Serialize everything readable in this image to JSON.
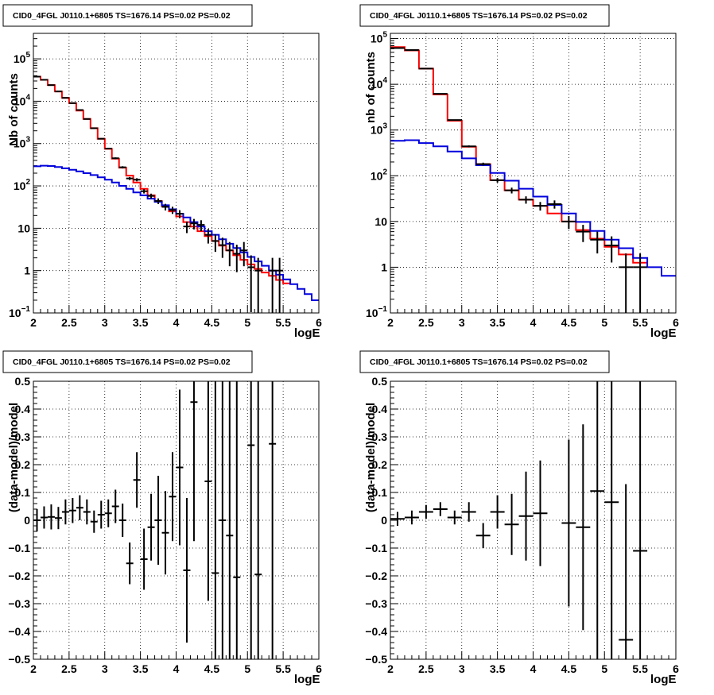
{
  "chart_data": [
    {
      "id": "counts-left",
      "type": "line",
      "title": "CID0_4FGL J0110.1+6805 TS=1676.14 PS=0.02 PS=0.02",
      "xlabel": "logE",
      "ylabel": "Nb of counts",
      "xlim": [
        2,
        6
      ],
      "ylim": [
        0.1,
        400000
      ],
      "yscale": "log",
      "grid": true,
      "x_ticks": [
        "2",
        "2.5",
        "3",
        "3.5",
        "4",
        "4.5",
        "5",
        "5.5",
        "6"
      ],
      "y_ticks": [
        {
          "v": 0.1,
          "base": "10",
          "exp": "−1"
        },
        {
          "v": 1,
          "label": "1"
        },
        {
          "v": 10,
          "label": "10"
        },
        {
          "v": 100,
          "base": "10",
          "exp": "2"
        },
        {
          "v": 1000,
          "base": "10",
          "exp": "3"
        },
        {
          "v": 10000,
          "base": "10",
          "exp": "4"
        },
        {
          "v": 100000,
          "base": "10",
          "exp": "5"
        }
      ],
      "bin_width": 0.1,
      "series": [
        {
          "color": "#ff0000",
          "x": [
            2.0,
            2.1,
            2.2,
            2.3,
            2.4,
            2.5,
            2.6,
            2.7,
            2.8,
            2.9,
            3.0,
            3.1,
            3.2,
            3.3,
            3.4,
            3.5,
            3.6,
            3.7,
            3.8,
            3.9,
            4.0,
            4.1,
            4.2,
            4.3,
            4.4,
            4.5,
            4.6,
            4.7,
            4.8,
            4.9,
            5.0,
            5.1,
            5.2,
            5.3,
            5.4,
            5.5
          ],
          "values": [
            38000,
            32000,
            24000,
            17000,
            12000,
            9000,
            6000,
            3800,
            2300,
            1300,
            750,
            440,
            270,
            175,
            120,
            85,
            60,
            44,
            33,
            25,
            19,
            14,
            11,
            8.5,
            6.5,
            5,
            3.9,
            3,
            2.3,
            1.8,
            1.4,
            1.1,
            0.9,
            0.75,
            0.6,
            0.5
          ]
        },
        {
          "color": "#0000dd",
          "x": [
            2.0,
            2.1,
            2.2,
            2.3,
            2.4,
            2.5,
            2.6,
            2.7,
            2.8,
            2.9,
            3.0,
            3.1,
            3.2,
            3.3,
            3.4,
            3.5,
            3.6,
            3.7,
            3.8,
            3.9,
            4.0,
            4.1,
            4.2,
            4.3,
            4.4,
            4.5,
            4.6,
            4.7,
            4.8,
            4.9,
            5.0,
            5.1,
            5.2,
            5.3,
            5.4,
            5.5,
            5.6,
            5.7,
            5.8,
            5.9
          ],
          "values": [
            290,
            300,
            295,
            280,
            260,
            240,
            220,
            200,
            180,
            160,
            140,
            120,
            100,
            85,
            70,
            60,
            50,
            42,
            35,
            28,
            22,
            18,
            14,
            11,
            8.5,
            7,
            5.5,
            4.3,
            3.4,
            2.7,
            2.1,
            1.65,
            1.3,
            1.0,
            0.8,
            0.62,
            0.48,
            0.37,
            0.28,
            0.2
          ]
        }
      ],
      "points": [
        {
          "x": 2.05,
          "y": 38000
        },
        {
          "x": 2.15,
          "y": 32000
        },
        {
          "x": 2.25,
          "y": 24000
        },
        {
          "x": 2.35,
          "y": 17000
        },
        {
          "x": 2.45,
          "y": 12000
        },
        {
          "x": 2.55,
          "y": 9000
        },
        {
          "x": 2.65,
          "y": 6200
        },
        {
          "x": 2.75,
          "y": 3800
        },
        {
          "x": 2.85,
          "y": 2300
        },
        {
          "x": 2.95,
          "y": 1300
        },
        {
          "x": 3.05,
          "y": 760
        },
        {
          "x": 3.15,
          "y": 450
        },
        {
          "x": 3.25,
          "y": 275
        },
        {
          "x": 3.35,
          "y": 150
        },
        {
          "x": 3.45,
          "y": 140
        },
        {
          "x": 3.55,
          "y": 75
        },
        {
          "x": 3.65,
          "y": 58
        },
        {
          "x": 3.75,
          "y": 44
        },
        {
          "x": 3.85,
          "y": 32
        },
        {
          "x": 3.95,
          "y": 27
        },
        {
          "x": 4.05,
          "y": 22
        },
        {
          "x": 4.15,
          "y": 11
        },
        {
          "x": 4.25,
          "y": 13
        },
        {
          "x": 4.35,
          "y": 12
        },
        {
          "x": 4.45,
          "y": 7
        },
        {
          "x": 4.55,
          "y": 5
        },
        {
          "x": 4.65,
          "y": 4
        },
        {
          "x": 4.75,
          "y": 3
        },
        {
          "x": 4.85,
          "y": 2.5
        },
        {
          "x": 4.95,
          "y": 3
        },
        {
          "x": 5.05,
          "y": 1.2
        },
        {
          "x": 5.15,
          "y": 1
        },
        {
          "x": 5.35,
          "y": 1
        },
        {
          "x": 5.45,
          "y": 1
        }
      ]
    },
    {
      "id": "counts-right",
      "type": "line",
      "title": "CID0_4FGL J0110.1+6805 TS=1676.14 PS=0.02 PS=0.02",
      "xlabel": "logE",
      "ylabel": "nb of counts",
      "xlim": [
        2,
        6
      ],
      "ylim": [
        0.1,
        130000
      ],
      "yscale": "log",
      "grid": true,
      "x_ticks": [
        "2",
        "2.5",
        "3",
        "3.5",
        "4",
        "4.5",
        "5",
        "5.5",
        "6"
      ],
      "y_ticks": [
        {
          "v": 0.1,
          "base": "10",
          "exp": "−1"
        },
        {
          "v": 1,
          "label": "1"
        },
        {
          "v": 10,
          "label": "10"
        },
        {
          "v": 100,
          "base": "10",
          "exp": "2"
        },
        {
          "v": 1000,
          "base": "10",
          "exp": "3"
        },
        {
          "v": 10000,
          "base": "10",
          "exp": "4"
        },
        {
          "v": 100000,
          "base": "10",
          "exp": "5"
        }
      ],
      "bin_width": 0.2,
      "series": [
        {
          "color": "#ff0000",
          "x": [
            2.0,
            2.2,
            2.4,
            2.6,
            2.8,
            3.0,
            3.2,
            3.4,
            3.6,
            3.8,
            4.0,
            4.2,
            4.4,
            4.6,
            4.8,
            5.0,
            5.2,
            5.4
          ],
          "values": [
            65000,
            55000,
            22000,
            6000,
            1600,
            430,
            180,
            80,
            48,
            30,
            22,
            15,
            10,
            6.5,
            4.2,
            2.8,
            1.9,
            1.25
          ]
        },
        {
          "color": "#0000dd",
          "x": [
            2.0,
            2.2,
            2.4,
            2.6,
            2.8,
            3.0,
            3.2,
            3.4,
            3.6,
            3.8,
            4.0,
            4.2,
            4.4,
            4.6,
            4.8,
            5.0,
            5.2,
            5.4,
            5.6,
            5.8
          ],
          "values": [
            580,
            600,
            520,
            440,
            340,
            240,
            170,
            115,
            78,
            52,
            35,
            23,
            15,
            9.8,
            6.2,
            4,
            2.6,
            1.6,
            1.0,
            0.65
          ]
        }
      ],
      "points": [
        {
          "x": 2.1,
          "y": 62000
        },
        {
          "x": 2.3,
          "y": 56000
        },
        {
          "x": 2.5,
          "y": 22000
        },
        {
          "x": 2.7,
          "y": 6200
        },
        {
          "x": 2.9,
          "y": 1650
        },
        {
          "x": 3.1,
          "y": 440
        },
        {
          "x": 3.3,
          "y": 180
        },
        {
          "x": 3.5,
          "y": 80
        },
        {
          "x": 3.7,
          "y": 48
        },
        {
          "x": 3.9,
          "y": 30
        },
        {
          "x": 4.1,
          "y": 22
        },
        {
          "x": 4.3,
          "y": 24
        },
        {
          "x": 4.5,
          "y": 10
        },
        {
          "x": 4.7,
          "y": 6
        },
        {
          "x": 4.9,
          "y": 4
        },
        {
          "x": 5.1,
          "y": 3
        },
        {
          "x": 5.3,
          "y": 1
        },
        {
          "x": 5.5,
          "y": 1
        }
      ]
    },
    {
      "id": "residuals-left",
      "type": "scatter",
      "title": "CID0_4FGL J0110.1+6805 TS=1676.14 PS=0.02 PS=0.02",
      "xlabel": "logE",
      "ylabel": "(data-model)/model",
      "xlim": [
        2,
        6
      ],
      "ylim": [
        -0.5,
        0.5
      ],
      "yscale": "linear",
      "grid": true,
      "x_ticks": [
        "2",
        "2.5",
        "3",
        "3.5",
        "4",
        "4.5",
        "5",
        "5.5",
        "6"
      ],
      "y_ticks": [
        {
          "v": -0.5,
          "label": "−0.5"
        },
        {
          "v": -0.4,
          "label": "−0.4"
        },
        {
          "v": -0.3,
          "label": "−0.3"
        },
        {
          "v": -0.2,
          "label": "−0.2"
        },
        {
          "v": -0.1,
          "label": "−0.1"
        },
        {
          "v": 0,
          "label": "0"
        },
        {
          "v": 0.1,
          "label": "0.1"
        },
        {
          "v": 0.2,
          "label": "0.2"
        },
        {
          "v": 0.3,
          "label": "0.3"
        },
        {
          "v": 0.4,
          "label": "0.4"
        },
        {
          "v": 0.5,
          "label": "0.5"
        }
      ],
      "xerr": 0.05,
      "points": [
        {
          "x": 2.05,
          "y": 0.0,
          "err": 0.04
        },
        {
          "x": 2.15,
          "y": 0.01,
          "err": 0.04
        },
        {
          "x": 2.25,
          "y": 0.012,
          "err": 0.045
        },
        {
          "x": 2.35,
          "y": 0.008,
          "err": 0.04
        },
        {
          "x": 2.45,
          "y": 0.03,
          "err": 0.045
        },
        {
          "x": 2.55,
          "y": 0.035,
          "err": 0.045
        },
        {
          "x": 2.65,
          "y": 0.045,
          "err": 0.045
        },
        {
          "x": 2.75,
          "y": 0.03,
          "err": 0.045
        },
        {
          "x": 2.85,
          "y": -0.005,
          "err": 0.04
        },
        {
          "x": 2.95,
          "y": 0.02,
          "err": 0.05
        },
        {
          "x": 3.05,
          "y": 0.025,
          "err": 0.05
        },
        {
          "x": 3.15,
          "y": 0.05,
          "err": 0.06
        },
        {
          "x": 3.25,
          "y": 0.0,
          "err": 0.06
        },
        {
          "x": 3.35,
          "y": -0.155,
          "err": 0.075
        },
        {
          "x": 3.45,
          "y": 0.145,
          "err": 0.1
        },
        {
          "x": 3.55,
          "y": -0.14,
          "err": 0.11
        },
        {
          "x": 3.65,
          "y": -0.025,
          "err": 0.12
        },
        {
          "x": 3.75,
          "y": 0.0,
          "err": 0.16
        },
        {
          "x": 3.85,
          "y": -0.045,
          "err": 0.15
        },
        {
          "x": 3.95,
          "y": 0.085,
          "err": 0.16
        },
        {
          "x": 4.05,
          "y": 0.19,
          "err": 0.28
        },
        {
          "x": 4.15,
          "y": -0.18,
          "err": 0.26
        },
        {
          "x": 4.25,
          "y": 0.425,
          "err": 0.5
        },
        {
          "x": 4.45,
          "y": 0.14,
          "err": 0.43
        },
        {
          "x": 4.55,
          "y": -0.19,
          "err": 0.9
        },
        {
          "x": 4.65,
          "y": 0.0,
          "err": 0.9
        },
        {
          "x": 4.75,
          "y": -0.055,
          "err": 0.9
        },
        {
          "x": 4.85,
          "y": -0.205,
          "err": 0.9
        },
        {
          "x": 5.05,
          "y": 0.27,
          "err": 0.9
        },
        {
          "x": 5.15,
          "y": -0.195,
          "err": 0.9
        },
        {
          "x": 5.35,
          "y": 0.275,
          "err": 0.9
        }
      ]
    },
    {
      "id": "residuals-right",
      "type": "scatter",
      "title": "CID0_4FGL J0110.1+6805 TS=1676.14 PS=0.02 PS=0.02",
      "xlabel": "logE",
      "ylabel": "(data-model)/model",
      "xlim": [
        2,
        6
      ],
      "ylim": [
        -0.5,
        0.5
      ],
      "yscale": "linear",
      "grid": true,
      "x_ticks": [
        "2",
        "2.5",
        "3",
        "3.5",
        "4",
        "4.5",
        "5",
        "5.5",
        "6"
      ],
      "y_ticks": [
        {
          "v": -0.5,
          "label": "−0.5"
        },
        {
          "v": -0.4,
          "label": "−0.4"
        },
        {
          "v": -0.3,
          "label": "−0.3"
        },
        {
          "v": -0.2,
          "label": "−0.2"
        },
        {
          "v": -0.1,
          "label": "−0.1"
        },
        {
          "v": 0,
          "label": "0"
        },
        {
          "v": 0.1,
          "label": "0.1"
        },
        {
          "v": 0.2,
          "label": "0.2"
        },
        {
          "v": 0.3,
          "label": "0.3"
        },
        {
          "v": 0.4,
          "label": "0.4"
        },
        {
          "v": 0.5,
          "label": "0.5"
        }
      ],
      "xerr": 0.1,
      "points": [
        {
          "x": 2.1,
          "y": 0.005,
          "err": 0.025
        },
        {
          "x": 2.3,
          "y": 0.01,
          "err": 0.025
        },
        {
          "x": 2.5,
          "y": 0.03,
          "err": 0.025
        },
        {
          "x": 2.7,
          "y": 0.04,
          "err": 0.025
        },
        {
          "x": 2.9,
          "y": 0.01,
          "err": 0.025
        },
        {
          "x": 3.1,
          "y": 0.03,
          "err": 0.035
        },
        {
          "x": 3.3,
          "y": -0.055,
          "err": 0.045
        },
        {
          "x": 3.5,
          "y": 0.03,
          "err": 0.06
        },
        {
          "x": 3.7,
          "y": -0.015,
          "err": 0.11
        },
        {
          "x": 3.9,
          "y": 0.015,
          "err": 0.16
        },
        {
          "x": 4.1,
          "y": 0.025,
          "err": 0.19
        },
        {
          "x": 4.5,
          "y": -0.01,
          "err": 0.3
        },
        {
          "x": 4.7,
          "y": -0.025,
          "err": 0.37
        },
        {
          "x": 4.9,
          "y": 0.105,
          "err": 0.9
        },
        {
          "x": 5.1,
          "y": 0.065,
          "err": 0.9
        },
        {
          "x": 5.3,
          "y": -0.43,
          "err": 0.56
        },
        {
          "x": 5.5,
          "y": -0.11,
          "err": 0.9
        }
      ]
    }
  ]
}
